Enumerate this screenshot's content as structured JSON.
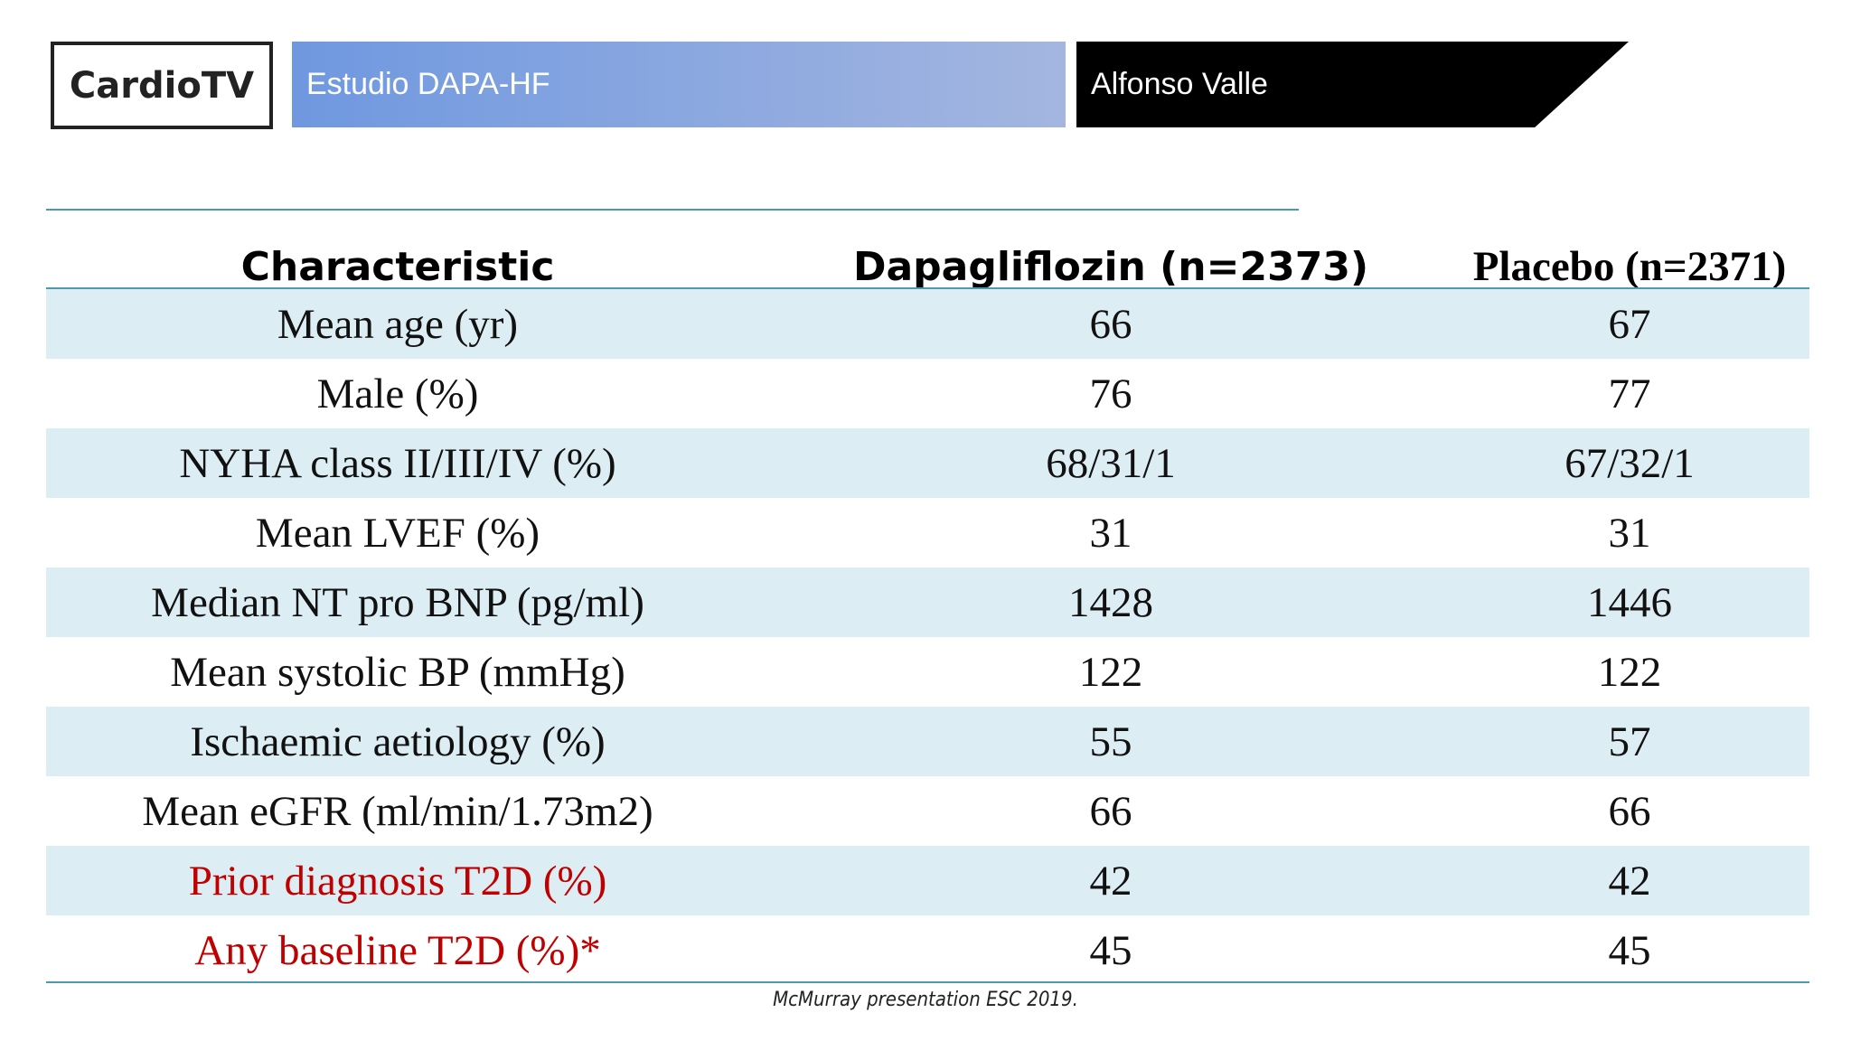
{
  "header": {
    "logo": "CardioTV",
    "title": "Estudio DAPA-HF",
    "presenter": "Alfonso Valle"
  },
  "table": {
    "columns": [
      "Characteristic",
      "Dapagliflozin (n=2373)",
      "Placebo (n=2371)"
    ],
    "rows": [
      [
        "Mean age (yr)",
        66,
        67
      ],
      [
        "Male (%)",
        76,
        77
      ],
      [
        "NYHA class II/III/IV (%)",
        "68/31/1",
        "67/32/1"
      ],
      [
        "Mean LVEF (%)",
        31,
        31
      ],
      [
        "Median NT pro BNP (pg/ml)",
        1428,
        1446
      ],
      [
        "Mean systolic BP (mmHg)",
        122,
        122
      ],
      [
        "Ischaemic aetiology (%)",
        55,
        57
      ],
      [
        "Mean eGFR (ml/min/1.73m2)",
        66,
        66
      ],
      [
        "Prior diagnosis T2D (%)",
        42,
        42
      ],
      [
        "Any baseline T2D (%)*",
        45,
        45
      ]
    ]
  },
  "footnote": "McMurray presentation ESC 2019."
}
